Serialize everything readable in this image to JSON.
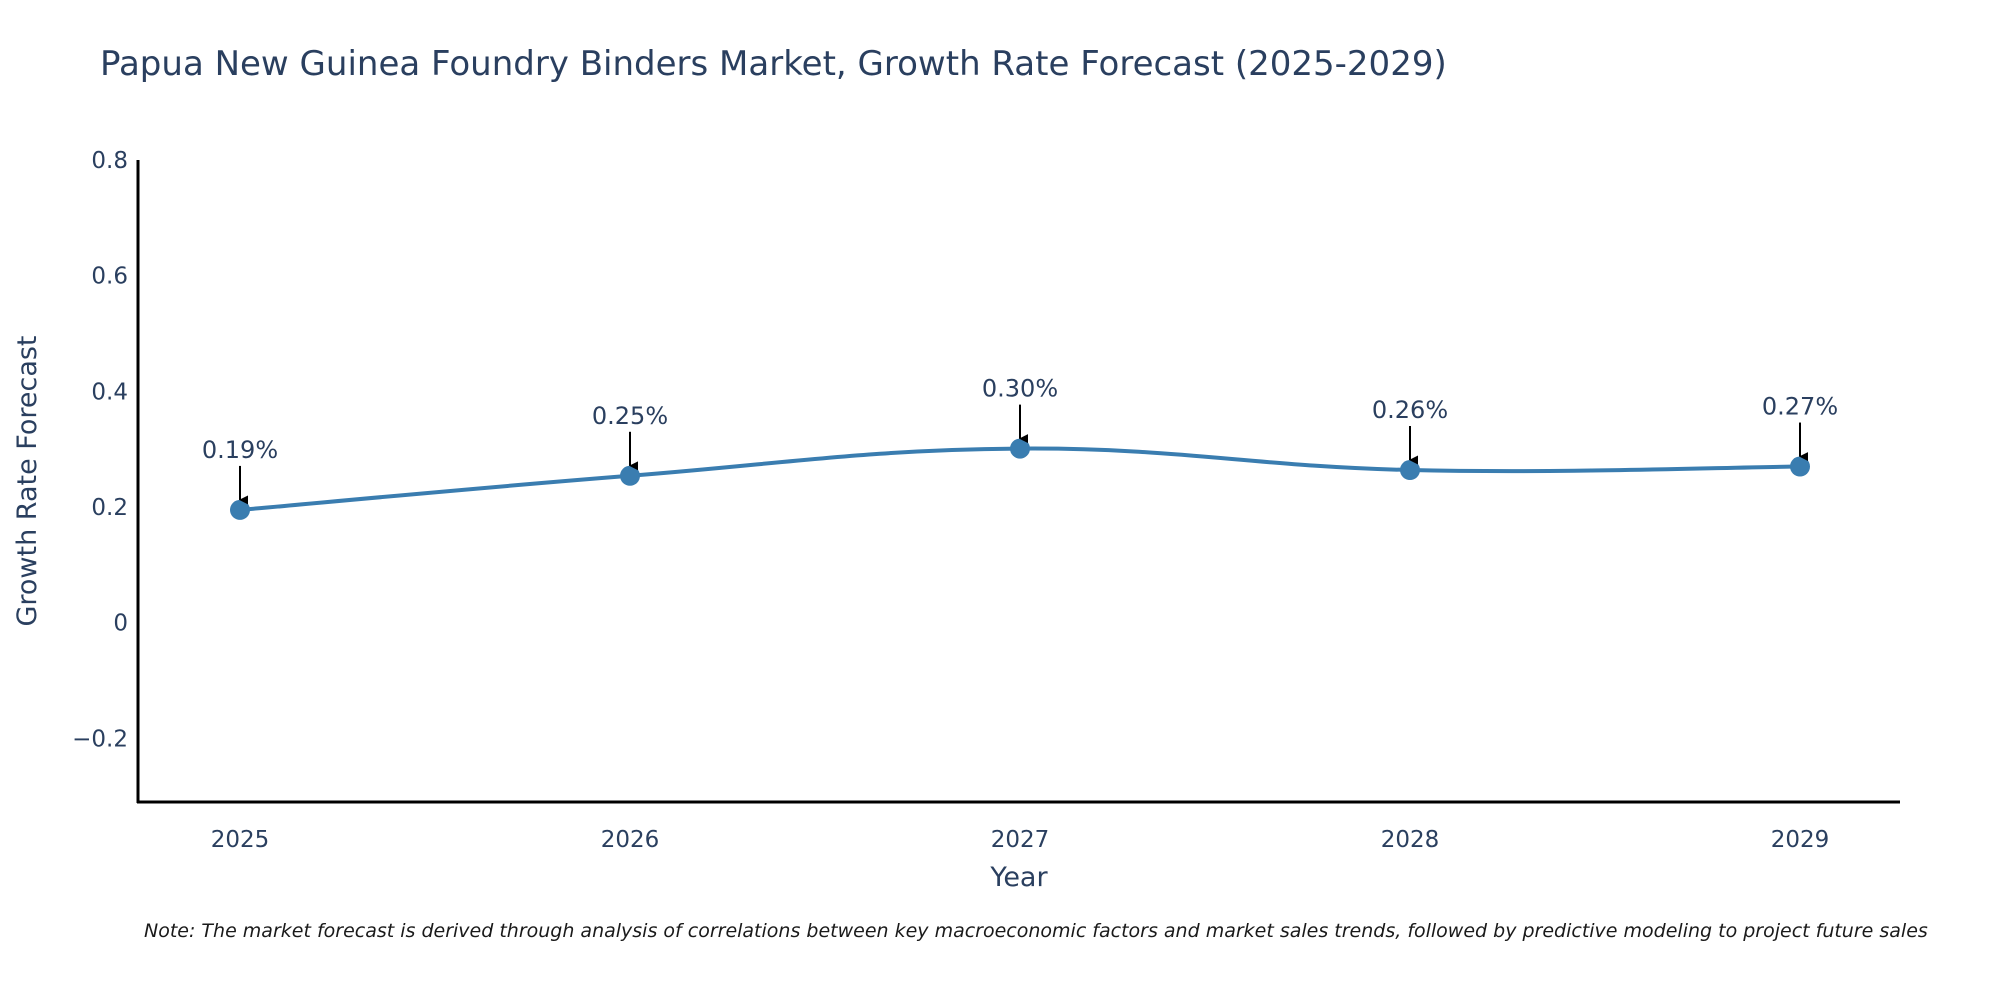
{
  "chart_data": {
    "type": "line",
    "title": "Papua New Guinea Foundry Binders Market, Growth Rate Forecast (2025-2029)",
    "xlabel": "Year",
    "ylabel": "Growth Rate Forecast",
    "categories": [
      "2025",
      "2026",
      "2027",
      "2028",
      "2029"
    ],
    "series": [
      {
        "name": "Growth Rate Forecast",
        "values": [
          0.195,
          0.254,
          0.301,
          0.264,
          0.27
        ],
        "labels": [
          "0.19%",
          "0.25%",
          "0.30%",
          "0.26%",
          "0.27%"
        ]
      }
    ],
    "ylim": [
      -0.31,
      0.8
    ],
    "yticks": [
      -0.2,
      0,
      0.2,
      0.4,
      0.6,
      0.8
    ],
    "ytick_labels": [
      "−0.2",
      "0",
      "0.2",
      "0.4",
      "0.6",
      "0.8"
    ],
    "grid": false,
    "line_color": "#3a7db0",
    "annotation_color": "#000000"
  },
  "note": "Note: The market forecast is derived through analysis of correlations between key macroeconomic factors and market sales trends, followed by predictive modeling to project future sales"
}
